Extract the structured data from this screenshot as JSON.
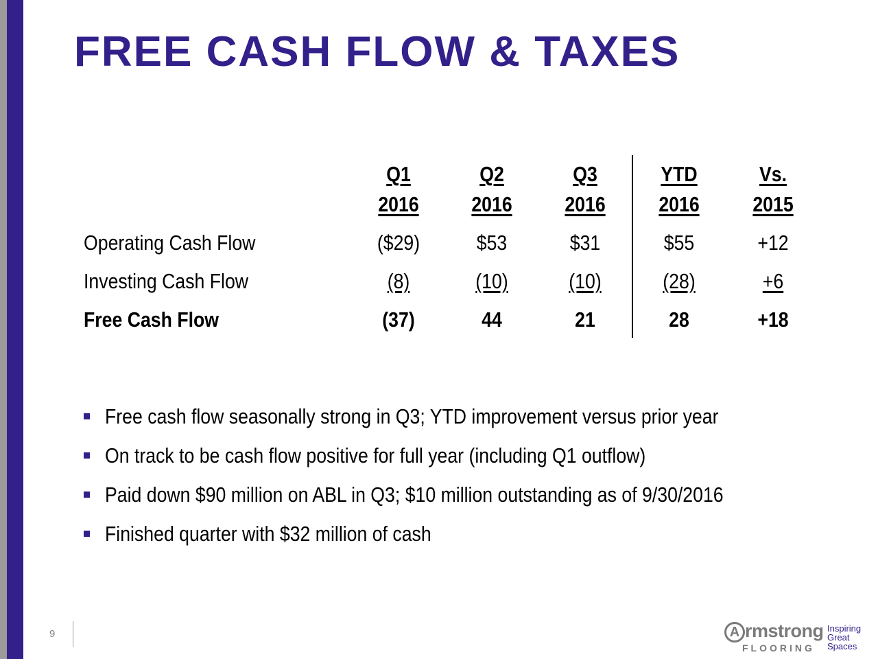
{
  "title": "FREE CASH FLOW & TAXES",
  "columns": [
    {
      "line1": "Q1",
      "line2": "2016"
    },
    {
      "line1": "Q2",
      "line2": "2016"
    },
    {
      "line1": "Q3",
      "line2": "2016"
    },
    {
      "line1": "YTD",
      "line2": "2016"
    },
    {
      "line1": "Vs.",
      "line2": "2015"
    }
  ],
  "rows": [
    {
      "label": "Operating Cash Flow",
      "values": [
        "($29)",
        "$53",
        "$31",
        "$55",
        "+12"
      ]
    },
    {
      "label": "Investing Cash Flow",
      "values": [
        "(8)",
        "(10)",
        "(10)",
        "(28)",
        "+6"
      ]
    },
    {
      "label": "Free Cash Flow",
      "values": [
        "(37)",
        "44",
        "21",
        "28",
        "+18"
      ]
    }
  ],
  "bullets": [
    "Free cash flow seasonally strong in Q3; YTD improvement versus prior year",
    "On track to be cash flow positive for full year (including Q1 outflow)",
    "Paid down $90 million on ABL in Q3; $10 million outstanding as of 9/30/2016",
    "Finished quarter with $32 million of cash"
  ],
  "page_number": "9",
  "logo": {
    "letter": "A",
    "word": "rmstrong",
    "sub": "FLOORING",
    "tagline": [
      "Inspiring",
      "Great",
      "Spaces"
    ]
  },
  "colors": {
    "accent": "#33208a",
    "side_gray": "#9b9b9b"
  }
}
